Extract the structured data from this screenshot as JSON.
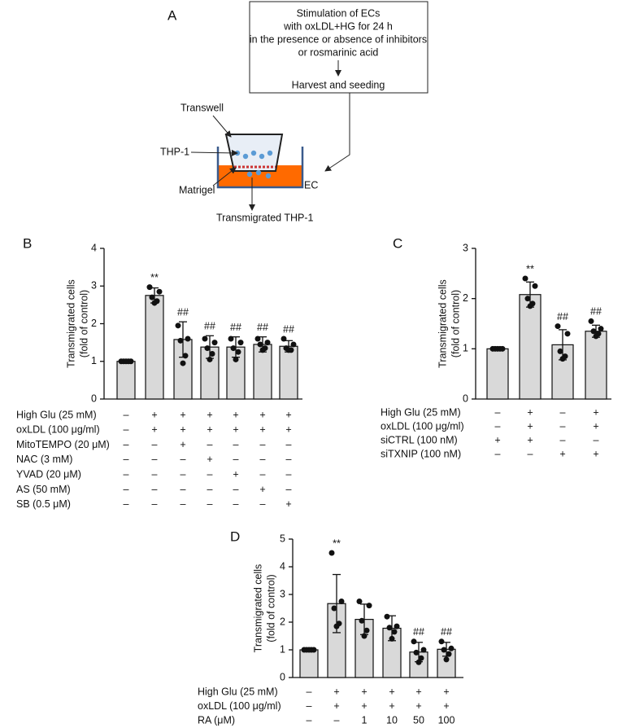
{
  "diagram": {
    "label": "A",
    "box_lines": [
      "Stimulation of ECs",
      "with oxLDL+HG for 24 h",
      "in the presence or absence of inhibitors",
      "or rosmarinic acid"
    ],
    "box_bottom": "Harvest and seeding",
    "transwell": "Transwell",
    "thp1": "THP-1",
    "matrigel": "Matrigel",
    "ec": "EC",
    "transmigrated": "Transmigrated THP-1"
  },
  "chart_data": [
    {
      "type": "bar",
      "panel": "B",
      "color": "#d9d9d9",
      "ylabel": [
        "Transmigrated cells",
        "(fold of control)"
      ],
      "categories": [
        null,
        null,
        null,
        null,
        null,
        null,
        null
      ],
      "values": [
        1.0,
        2.75,
        1.58,
        1.38,
        1.38,
        1.45,
        1.4
      ],
      "errors": [
        0.02,
        0.2,
        0.47,
        0.3,
        0.27,
        0.2,
        0.15
      ],
      "points": [
        [
          1,
          1,
          1,
          1,
          1
        ],
        [
          2.97,
          2.85,
          2.7,
          2.6,
          2.55
        ],
        [
          1.95,
          1.6,
          1.55,
          1.15,
          0.95
        ],
        [
          1.6,
          1.5,
          1.35,
          1.2,
          1.05
        ],
        [
          1.6,
          1.5,
          1.35,
          1.25,
          1.05
        ],
        [
          1.6,
          1.5,
          1.45,
          1.35,
          1.3
        ],
        [
          1.6,
          1.45,
          1.35,
          1.3,
          1.3
        ]
      ],
      "annotations": [
        null,
        "**",
        "##",
        "##",
        "##",
        "##",
        "##"
      ],
      "ylim": [
        0,
        4
      ],
      "yticks": [
        0,
        1,
        2,
        3,
        4
      ],
      "conditions": [
        {
          "label": "High Glu (25 mM)",
          "marks": [
            "–",
            "+",
            "+",
            "+",
            "+",
            "+",
            "+"
          ]
        },
        {
          "label": "oxLDL (100 μg/ml)",
          "marks": [
            "–",
            "+",
            "+",
            "+",
            "+",
            "+",
            "+"
          ]
        },
        {
          "label": "MitoTEMPO (20 μM)",
          "marks": [
            "–",
            "–",
            "+",
            "–",
            "–",
            "–",
            "–"
          ]
        },
        {
          "label": "NAC (3 mM)",
          "marks": [
            "–",
            "–",
            "–",
            "+",
            "–",
            "–",
            "–"
          ]
        },
        {
          "label": "YVAD (20 μM)",
          "marks": [
            "–",
            "–",
            "–",
            "–",
            "+",
            "–",
            "–"
          ]
        },
        {
          "label": "AS (50 mM)",
          "marks": [
            "–",
            "–",
            "–",
            "–",
            "–",
            "+",
            "–"
          ]
        },
        {
          "label": "SB (0.5 μM)",
          "marks": [
            "–",
            "–",
            "–",
            "–",
            "–",
            "–",
            "+"
          ]
        }
      ]
    },
    {
      "type": "bar",
      "panel": "C",
      "color": "#d9d9d9",
      "ylabel": [
        "Transmigrated cells",
        "(fold of control)"
      ],
      "categories": [
        null,
        null,
        null,
        null
      ],
      "values": [
        1.0,
        2.08,
        1.08,
        1.35
      ],
      "errors": [
        0.02,
        0.25,
        0.3,
        0.12
      ],
      "points": [
        [
          1,
          1,
          1,
          1,
          1
        ],
        [
          2.4,
          2.25,
          2.0,
          1.9,
          1.85
        ],
        [
          1.45,
          1.3,
          0.95,
          0.85,
          0.8
        ],
        [
          1.55,
          1.4,
          1.35,
          1.3,
          1.25
        ]
      ],
      "annotations": [
        null,
        "**",
        "##",
        "##"
      ],
      "ylim": [
        0,
        3
      ],
      "yticks": [
        0,
        1,
        2,
        3
      ],
      "conditions": [
        {
          "label": "High Glu (25 mM)",
          "marks": [
            "–",
            "+",
            "–",
            "+"
          ]
        },
        {
          "label": "oxLDL (100 μg/ml)",
          "marks": [
            "–",
            "+",
            "–",
            "+"
          ]
        },
        {
          "label": "siCTRL (100 nM)",
          "marks": [
            "+",
            "+",
            "–",
            "–"
          ]
        },
        {
          "label": "siTXNIP (100 nM)",
          "marks": [
            "–",
            "–",
            "+",
            "+"
          ]
        }
      ]
    },
    {
      "type": "bar",
      "panel": "D",
      "color": "#d9d9d9",
      "ylabel": [
        "Transmigrated cells",
        "(fold of control)"
      ],
      "categories": [
        null,
        null,
        null,
        null,
        null,
        null
      ],
      "values": [
        1.0,
        2.67,
        2.1,
        1.78,
        0.92,
        1.02
      ],
      "errors": [
        0.02,
        1.05,
        0.55,
        0.45,
        0.35,
        0.25
      ],
      "points": [
        [
          1,
          1,
          1,
          1,
          1
        ],
        [
          4.5,
          2.75,
          2.5,
          1.95,
          1.85
        ],
        [
          2.75,
          2.6,
          2.05,
          1.7,
          1.5
        ],
        [
          2.2,
          1.85,
          1.8,
          1.65,
          1.4
        ],
        [
          1.3,
          1.0,
          0.9,
          0.7,
          0.55
        ],
        [
          1.3,
          1.05,
          1.0,
          0.85,
          0.65
        ]
      ],
      "annotations": [
        null,
        "**",
        null,
        null,
        "##",
        "##"
      ],
      "ylim": [
        0,
        5
      ],
      "yticks": [
        0,
        1,
        2,
        3,
        4,
        5
      ],
      "conditions": [
        {
          "label": "High Glu (25 mM)",
          "marks": [
            "–",
            "+",
            "+",
            "+",
            "+",
            "+"
          ]
        },
        {
          "label": "oxLDL (100 μg/ml)",
          "marks": [
            "–",
            "+",
            "+",
            "+",
            "+",
            "+"
          ]
        },
        {
          "label": "RA (μM)",
          "marks": [
            "–",
            "–",
            "1",
            "10",
            "50",
            "100"
          ]
        }
      ]
    }
  ]
}
